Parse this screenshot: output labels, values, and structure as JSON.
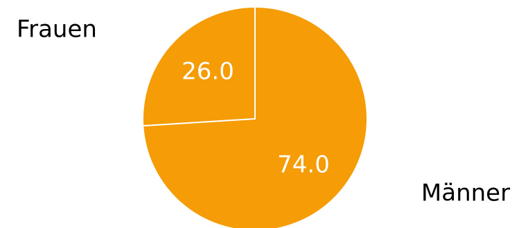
{
  "chart_data": {
    "type": "pie",
    "categories": [
      "Frauen",
      "Männer"
    ],
    "values": [
      26.0,
      74.0
    ],
    "value_labels": [
      "26.0",
      "74.0"
    ],
    "colors": [
      "#f59c06",
      "#f59c06"
    ],
    "slice_border_color": "#ffffff",
    "start_angle": "12 o'clock, counter-clockwise",
    "legend": "none"
  }
}
